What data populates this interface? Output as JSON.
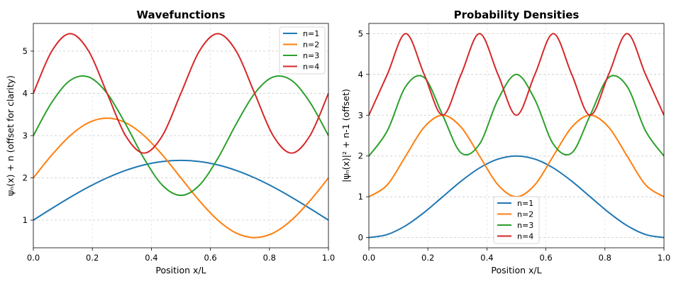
{
  "chart_data": [
    {
      "type": "line",
      "title": "Wavefunctions",
      "xlabel": "Position x/L",
      "ylabel": "ψₙ(x) + n (offset for clarity)",
      "xlim": [
        0,
        1
      ],
      "ylim": [
        0.345,
        5.655
      ],
      "xticks": [
        "0.0",
        "0.2",
        "0.4",
        "0.6",
        "0.8",
        "1.0"
      ],
      "yticks": [
        "1",
        "2",
        "3",
        "4",
        "5"
      ],
      "grid": true,
      "legend": "top-right",
      "x": [
        0,
        0.0625,
        0.125,
        0.1875,
        0.25,
        0.3125,
        0.375,
        0.4375,
        0.5,
        0.5625,
        0.625,
        0.6875,
        0.75,
        0.8125,
        0.875,
        0.9375,
        1
      ],
      "series": [
        {
          "name": "n=1",
          "color": "#1f77b4",
          "values": [
            1,
            1.276,
            1.541,
            1.786,
            2,
            2.176,
            2.307,
            2.387,
            2.414,
            2.387,
            2.307,
            2.176,
            2,
            1.786,
            1.541,
            1.276,
            1
          ]
        },
        {
          "name": "n=2",
          "color": "#ff7f0e",
          "values": [
            2,
            2.541,
            3,
            3.307,
            3.414,
            3.307,
            3,
            2.541,
            2,
            1.459,
            1,
            0.693,
            0.586,
            0.693,
            1,
            1.459,
            2
          ]
        },
        {
          "name": "n=3",
          "color": "#2ca02c",
          "values": [
            3,
            3.786,
            4.307,
            4.387,
            4,
            3.276,
            2.459,
            1.824,
            1.586,
            1.824,
            2.459,
            3.276,
            4,
            4.387,
            4.307,
            3.786,
            3
          ]
        },
        {
          "name": "n=4",
          "color": "#d62728",
          "values": [
            4,
            5,
            5.414,
            5,
            4,
            3,
            2.586,
            3,
            4,
            5,
            5.414,
            5,
            4,
            3,
            2.586,
            3,
            4
          ]
        }
      ]
    },
    {
      "type": "line",
      "title": "Probability Densities",
      "xlabel": "Position x/L",
      "ylabel": "|ψₙ(x)|² + n-1 (offset)",
      "xlim": [
        0,
        1
      ],
      "ylim": [
        -0.25,
        5.25
      ],
      "xticks": [
        "0.0",
        "0.2",
        "0.4",
        "0.6",
        "0.8",
        "1.0"
      ],
      "yticks": [
        "0",
        "1",
        "2",
        "3",
        "4",
        "5"
      ],
      "grid": true,
      "legend": "lower-center",
      "x": [
        0,
        0.0625,
        0.125,
        0.1875,
        0.25,
        0.3125,
        0.375,
        0.4375,
        0.5,
        0.5625,
        0.625,
        0.6875,
        0.75,
        0.8125,
        0.875,
        0.9375,
        1
      ],
      "series": [
        {
          "name": "n=1",
          "color": "#1f77b4",
          "values": [
            0,
            0.076,
            0.293,
            0.617,
            1,
            1.383,
            1.707,
            1.924,
            2,
            1.924,
            1.707,
            1.383,
            1,
            0.617,
            0.293,
            0.076,
            0
          ]
        },
        {
          "name": "n=2",
          "color": "#ff7f0e",
          "values": [
            1,
            1.293,
            2,
            2.707,
            3,
            2.707,
            2,
            1.293,
            1,
            1.293,
            2,
            2.707,
            3,
            2.707,
            2,
            1.293,
            1
          ]
        },
        {
          "name": "n=3",
          "color": "#2ca02c",
          "values": [
            2,
            2.617,
            3.707,
            3.924,
            3,
            2.076,
            2.293,
            3.383,
            4,
            3.383,
            2.293,
            2.076,
            3,
            3.924,
            3.707,
            2.617,
            2
          ]
        },
        {
          "name": "n=4",
          "color": "#d62728",
          "values": [
            3,
            4,
            5,
            4,
            3,
            4,
            5,
            4,
            3,
            4,
            5,
            4,
            3,
            4,
            5,
            4,
            3
          ]
        }
      ]
    }
  ]
}
